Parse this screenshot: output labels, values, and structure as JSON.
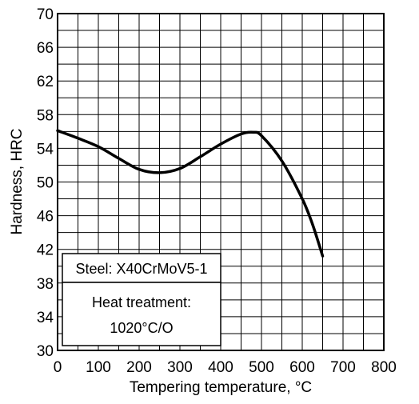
{
  "chart_data": {
    "type": "line",
    "title": "",
    "xlabel": "Tempering temperature, °C",
    "ylabel": "Hardness, HRC",
    "xlim": [
      0,
      800
    ],
    "ylim": [
      30,
      70
    ],
    "x_ticks": [
      0,
      100,
      200,
      300,
      400,
      500,
      600,
      700,
      800
    ],
    "y_ticks": [
      30,
      34,
      38,
      42,
      46,
      50,
      54,
      58,
      62,
      66,
      70
    ],
    "x_minor_step": 50,
    "y_minor_step": 2,
    "grid": true,
    "series": [
      {
        "x": [
          0,
          50,
          100,
          150,
          200,
          250,
          300,
          350,
          400,
          450,
          480,
          500,
          550,
          600,
          625,
          650
        ],
        "y": [
          56.1,
          55.2,
          54.2,
          52.8,
          51.5,
          51.1,
          51.6,
          53.0,
          54.5,
          55.7,
          55.9,
          55.5,
          52.5,
          48.0,
          45.0,
          41.2
        ]
      }
    ],
    "annotation": {
      "steel": "Steel: X40CrMoV5-1",
      "heat_treatment_line1": "Heat treatment:",
      "heat_treatment_line2": "1020°C/O"
    }
  }
}
